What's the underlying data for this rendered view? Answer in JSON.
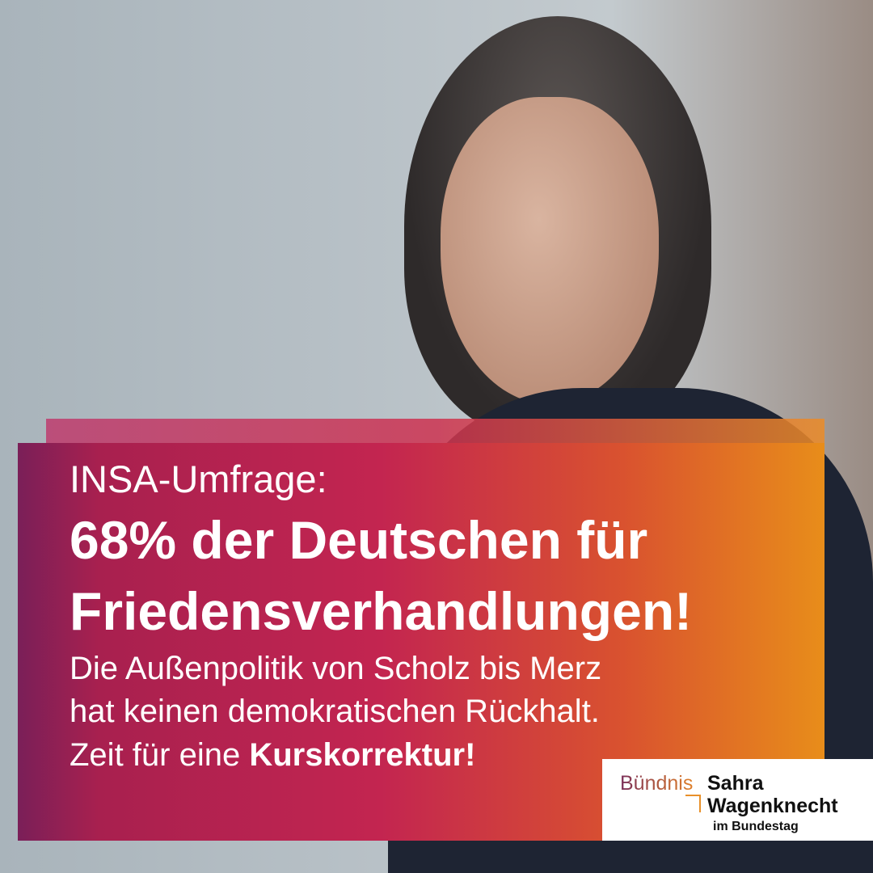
{
  "headline": {
    "intro": "INSA-Umfrage:",
    "line1": "68% der Deutschen für",
    "line2": "Friedensverhandlungen!"
  },
  "body": {
    "line1": "Die Außenpolitik von Scholz bis Merz",
    "line2": "hat keinen demokratischen Rückhalt.",
    "line3_prefix": "Zeit für eine ",
    "line3_bold": "Kurskorrektur!"
  },
  "logo": {
    "word1": "Bündnis",
    "word2": "Sahra",
    "word3": "Wagenknecht",
    "subtitle": "im Bundestag"
  },
  "colors": {
    "gradient_start": "#7a1f58",
    "gradient_mid": "#c32550",
    "gradient_end": "#e88d1a"
  }
}
